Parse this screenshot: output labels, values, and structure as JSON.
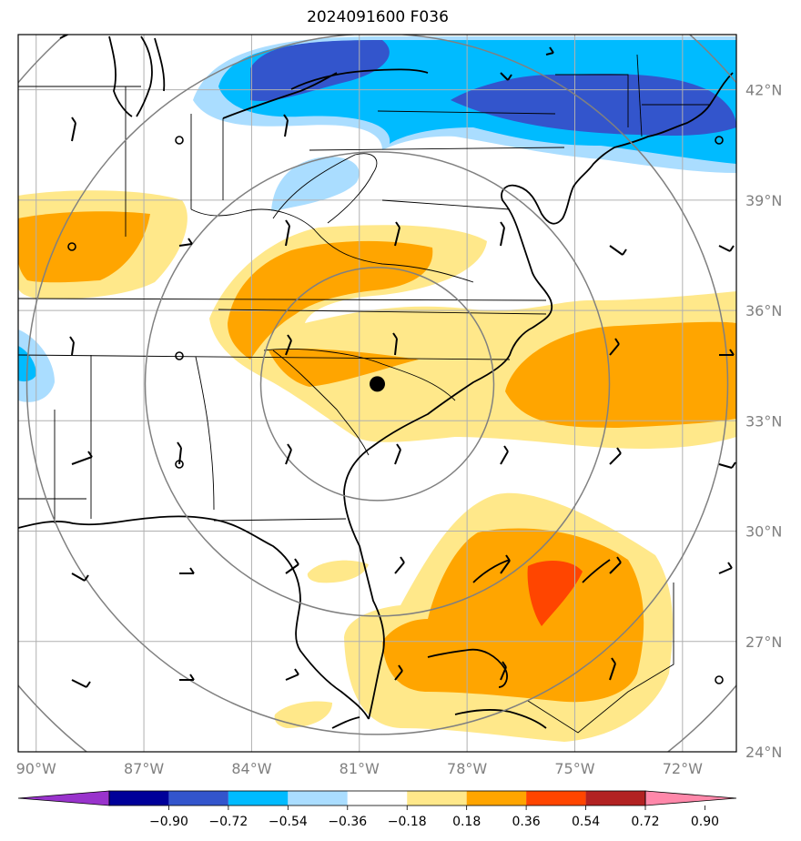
{
  "title": "2024091600 F036",
  "map": {
    "lat_labels": [
      "42°N",
      "39°N",
      "36°N",
      "33°N",
      "30°N",
      "27°N",
      "24°N"
    ],
    "lon_labels": [
      "90°W",
      "87°W",
      "84°W",
      "81°W",
      "78°W",
      "75°W",
      "72°W"
    ],
    "lat_values": [
      42,
      39,
      36,
      33,
      30,
      27,
      24
    ],
    "lon_values": [
      -90,
      -87,
      -84,
      -81,
      -78,
      -75,
      -72
    ],
    "extent": {
      "lon_min": -90.5,
      "lon_max": -70.5,
      "lat_min": 24,
      "lat_max": 43.5
    },
    "center_marker": {
      "lon": -80.5,
      "lat": 34.0
    },
    "range_ring_count": 4
  },
  "colorbar": {
    "tick_labels": [
      "−0.90",
      "−0.72",
      "−0.54",
      "−0.36",
      "−0.18",
      "0.18",
      "0.36",
      "0.54",
      "0.72",
      "0.90"
    ],
    "tick_values": [
      -0.9,
      -0.72,
      -0.54,
      -0.36,
      -0.18,
      0.18,
      0.36,
      0.54,
      0.72,
      0.9
    ],
    "colors": [
      "#9933cc",
      "#000099",
      "#3355cc",
      "#00bbff",
      "#aaddff",
      "#ffffff",
      "#ffe88a",
      "#ffa500",
      "#ff4500",
      "#b22222",
      "#ff88aa"
    ]
  }
}
